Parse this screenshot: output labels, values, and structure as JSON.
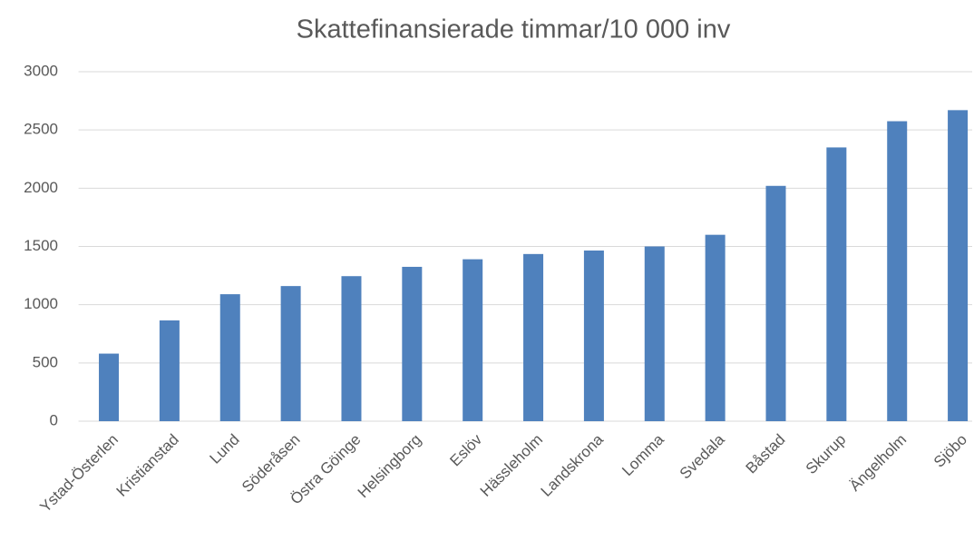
{
  "chart_data": {
    "type": "bar",
    "title": "Skattefinansierade timmar/10 000 inv",
    "categories": [
      "Ystad-Österlen",
      "Kristianstad",
      "Lund",
      "Söderåsen",
      "Östra Göinge",
      "Helsingborg",
      "Eslöv",
      "Hässleholm",
      "Landskrona",
      "Lomma",
      "Svedala",
      "Båstad",
      "Skurup",
      "Ängelholm",
      "Sjöbo"
    ],
    "values": [
      580,
      865,
      1090,
      1160,
      1245,
      1325,
      1390,
      1435,
      1465,
      1500,
      1600,
      2020,
      2350,
      2575,
      2670
    ],
    "color": "#4f81bd",
    "ylim": [
      0,
      3000
    ],
    "yticks": [
      0,
      500,
      1000,
      1500,
      2000,
      2500,
      3000
    ],
    "grid": true
  }
}
